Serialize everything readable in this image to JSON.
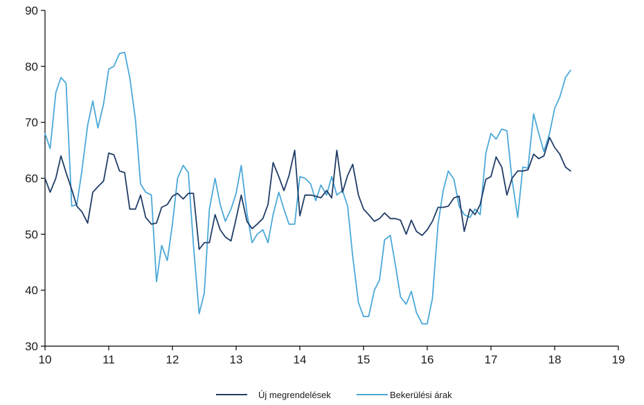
{
  "chart_data": {
    "type": "line",
    "title": "",
    "xlabel": "",
    "ylabel": "",
    "xlim": [
      10,
      19
    ],
    "ylim": [
      30,
      90
    ],
    "x_ticks": [
      10,
      11,
      12,
      13,
      14,
      15,
      16,
      17,
      18,
      19
    ],
    "y_ticks": [
      30,
      40,
      50,
      60,
      70,
      80,
      90
    ],
    "grid": false,
    "legend_position": "bottom",
    "colors": {
      "Új megrendelések": "#1f3b66",
      "Bekerülési árak": "#4aa8d8"
    },
    "series": [
      {
        "name": "Új megrendelések",
        "x": [
          10.0,
          10.08,
          10.17,
          10.25,
          10.33,
          10.42,
          10.5,
          10.58,
          10.67,
          10.75,
          10.83,
          10.92,
          11.0,
          11.08,
          11.17,
          11.25,
          11.33,
          11.42,
          11.5,
          11.58,
          11.67,
          11.75,
          11.83,
          11.92,
          12.0,
          12.08,
          12.17,
          12.25,
          12.33,
          12.42,
          12.5,
          12.58,
          12.67,
          12.75,
          12.83,
          12.92,
          13.0,
          13.08,
          13.17,
          13.25,
          13.33,
          13.42,
          13.5,
          13.58,
          13.67,
          13.75,
          13.83,
          13.92,
          14.0,
          14.08,
          14.17,
          14.25,
          14.33,
          14.42,
          14.5,
          14.58,
          14.67,
          14.75,
          14.83,
          14.92,
          15.0,
          15.08,
          15.17,
          15.25,
          15.33,
          15.42,
          15.5,
          15.58,
          15.67,
          15.75,
          15.83,
          15.92,
          16.0,
          16.08,
          16.17,
          16.25,
          16.33,
          16.42,
          16.5,
          16.58,
          16.67,
          16.75,
          16.83,
          16.92,
          17.0,
          17.08,
          17.17,
          17.25,
          17.33,
          17.42,
          17.5,
          17.58,
          17.67,
          17.75,
          17.83,
          17.92,
          18.0,
          18.08,
          18.17,
          18.25
        ],
        "values": [
          60.0,
          57.5,
          60.0,
          64.0,
          61.0,
          58.0,
          55.0,
          54.0,
          52.0,
          57.5,
          58.5,
          59.5,
          64.5,
          64.2,
          61.3,
          61.0,
          54.5,
          54.5,
          57.0,
          53.0,
          51.8,
          52.0,
          54.8,
          55.3,
          56.8,
          57.3,
          56.3,
          57.3,
          57.3,
          47.3,
          48.5,
          48.5,
          53.5,
          50.8,
          49.5,
          48.8,
          52.8,
          57.0,
          52.3,
          51.0,
          51.8,
          52.8,
          55.3,
          62.8,
          60.3,
          57.8,
          60.5,
          65.0,
          53.3,
          57.0,
          57.0,
          56.8,
          56.5,
          57.8,
          56.5,
          65.0,
          57.5,
          60.5,
          62.5,
          57.0,
          54.5,
          53.5,
          52.3,
          52.8,
          53.8,
          52.8,
          52.8,
          52.5,
          50.0,
          52.5,
          50.5,
          49.8,
          50.8,
          52.3,
          54.8,
          54.8,
          55.0,
          56.5,
          56.8,
          50.5,
          54.5,
          53.5,
          55.3,
          59.8,
          60.3,
          63.8,
          62.0,
          57.0,
          60.0,
          61.3,
          61.3,
          61.5,
          64.3,
          63.5,
          64.0,
          67.3,
          65.5,
          64.3,
          62.0,
          61.3
        ]
      },
      {
        "name": "Bekerülési árak",
        "x": [
          10.0,
          10.08,
          10.17,
          10.25,
          10.33,
          10.42,
          10.5,
          10.58,
          10.67,
          10.75,
          10.83,
          10.92,
          11.0,
          11.08,
          11.17,
          11.25,
          11.33,
          11.42,
          11.5,
          11.58,
          11.67,
          11.75,
          11.83,
          11.92,
          12.0,
          12.08,
          12.17,
          12.25,
          12.33,
          12.42,
          12.5,
          12.58,
          12.67,
          12.75,
          12.83,
          12.92,
          13.0,
          13.08,
          13.17,
          13.25,
          13.33,
          13.42,
          13.5,
          13.58,
          13.67,
          13.75,
          13.83,
          13.92,
          14.0,
          14.08,
          14.17,
          14.25,
          14.33,
          14.42,
          14.5,
          14.58,
          14.67,
          14.75,
          14.83,
          14.92,
          15.0,
          15.08,
          15.17,
          15.25,
          15.33,
          15.42,
          15.5,
          15.58,
          15.67,
          15.75,
          15.83,
          15.92,
          16.0,
          16.08,
          16.17,
          16.25,
          16.33,
          16.42,
          16.5,
          16.58,
          16.67,
          16.75,
          16.83,
          16.92,
          17.0,
          17.08,
          17.17,
          17.25,
          17.33,
          17.42,
          17.5,
          17.58,
          17.67,
          17.75,
          17.83,
          17.92,
          18.0,
          18.08,
          18.17,
          18.25
        ],
        "values": [
          68.0,
          65.3,
          75.3,
          78.0,
          77.0,
          55.0,
          55.3,
          61.5,
          69.5,
          73.8,
          69.0,
          73.3,
          79.5,
          80.0,
          82.3,
          82.5,
          78.0,
          70.5,
          59.0,
          57.5,
          57.0,
          41.5,
          48.0,
          45.3,
          51.8,
          60.0,
          62.3,
          61.0,
          48.0,
          35.8,
          39.5,
          54.5,
          60.0,
          55.3,
          52.3,
          54.5,
          57.3,
          62.3,
          53.8,
          48.5,
          50.0,
          50.8,
          48.5,
          53.5,
          57.5,
          54.5,
          51.8,
          51.8,
          60.3,
          60.0,
          59.0,
          56.0,
          58.8,
          57.0,
          60.3,
          57.0,
          57.8,
          55.0,
          46.0,
          37.8,
          35.3,
          35.3,
          40.0,
          41.8,
          49.0,
          49.8,
          44.5,
          38.8,
          37.5,
          39.8,
          36.0,
          34.0,
          34.0,
          38.5,
          51.8,
          57.8,
          61.3,
          59.8,
          55.0,
          53.5,
          53.0,
          54.5,
          53.5,
          64.5,
          68.0,
          67.0,
          68.8,
          68.5,
          59.8,
          53.0,
          62.0,
          61.8,
          71.5,
          68.0,
          64.8,
          68.0,
          72.5,
          74.5,
          78.0,
          79.3
        ]
      }
    ]
  }
}
